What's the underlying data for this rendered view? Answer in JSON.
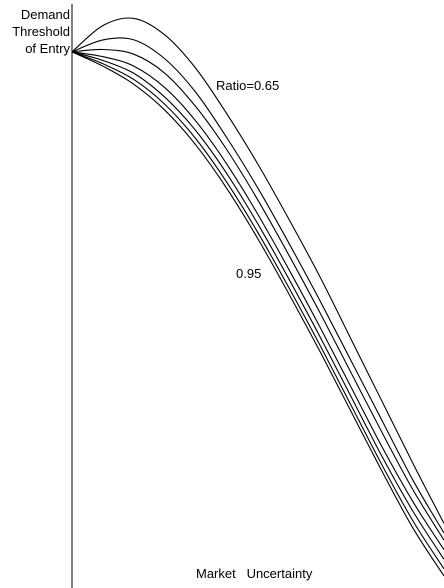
{
  "chart_data": {
    "type": "line",
    "ylabel": [
      "Demand",
      "Threshold",
      "of Entry"
    ],
    "xlabel": "Market   Uncertainty",
    "annotations": {
      "top": "Ratio=0.65",
      "bottom": "0.95"
    },
    "series": [
      {
        "values": [
          0.0,
          0.55,
          0.7,
          0.35,
          -0.35,
          -1.3,
          -2.35,
          -3.5,
          -4.7,
          -6.0,
          -7.3,
          -8.6,
          -9.85
        ]
      },
      {
        "values": [
          0.0,
          0.25,
          0.25,
          -0.15,
          -0.85,
          -1.8,
          -2.85,
          -4.0,
          -5.2,
          -6.45,
          -7.7,
          -8.95,
          -10.05
        ]
      },
      {
        "values": [
          0.0,
          0.05,
          -0.05,
          -0.45,
          -1.15,
          -2.05,
          -3.1,
          -4.25,
          -5.45,
          -6.7,
          -7.95,
          -9.15,
          -10.2
        ]
      },
      {
        "values": [
          0.0,
          -0.1,
          -0.3,
          -0.75,
          -1.45,
          -2.35,
          -3.4,
          -4.55,
          -5.75,
          -7.0,
          -8.25,
          -9.4,
          -10.4
        ]
      },
      {
        "values": [
          0.0,
          -0.18,
          -0.45,
          -0.95,
          -1.65,
          -2.55,
          -3.6,
          -4.75,
          -5.95,
          -7.2,
          -8.45,
          -9.6,
          -10.6
        ]
      },
      {
        "values": [
          0.0,
          -0.25,
          -0.58,
          -1.1,
          -1.82,
          -2.73,
          -3.78,
          -4.93,
          -6.13,
          -7.38,
          -8.63,
          -9.8,
          -10.8
        ]
      },
      {
        "values": [
          0.0,
          -0.3,
          -0.68,
          -1.22,
          -1.95,
          -2.86,
          -3.91,
          -5.06,
          -6.26,
          -7.51,
          -8.76,
          -9.95,
          -10.95
        ]
      }
    ],
    "x": [
      0,
      1,
      2,
      3,
      4,
      5,
      6,
      7,
      8,
      9,
      10,
      11,
      12
    ],
    "xlim": [
      0,
      12
    ],
    "ylim": [
      -11.2,
      1.0
    ],
    "grid": false,
    "legend": "none"
  }
}
